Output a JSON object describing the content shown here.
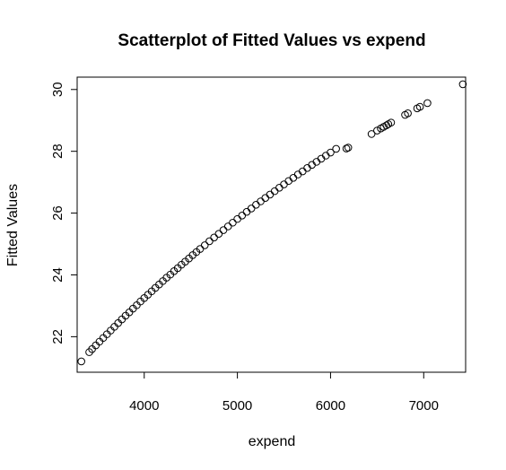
{
  "chart_data": {
    "type": "scatter",
    "title": "Scatterplot of Fitted Values vs expend",
    "xlabel": "expend",
    "ylabel": "Fitted Values",
    "xlim": [
      3280,
      7450
    ],
    "ylim": [
      20.85,
      30.4
    ],
    "xticks": [
      4000,
      5000,
      6000,
      7000
    ],
    "yticks": [
      22,
      24,
      26,
      28,
      30
    ],
    "grid": false,
    "legend": "none",
    "marker": "open-circle",
    "x": [
      3325,
      3410,
      3440,
      3480,
      3520,
      3560,
      3600,
      3640,
      3680,
      3720,
      3760,
      3800,
      3840,
      3880,
      3920,
      3960,
      4000,
      4040,
      4080,
      4120,
      4160,
      4200,
      4240,
      4280,
      4320,
      4360,
      4400,
      4440,
      4480,
      4520,
      4560,
      4600,
      4650,
      4700,
      4750,
      4800,
      4850,
      4900,
      4950,
      5000,
      5050,
      5100,
      5150,
      5200,
      5250,
      5300,
      5350,
      5400,
      5450,
      5500,
      5550,
      5600,
      5650,
      5700,
      5750,
      5800,
      5850,
      5900,
      5950,
      6000,
      6060,
      6170,
      6190,
      6440,
      6500,
      6540,
      6570,
      6600,
      6620,
      6650,
      6800,
      6830,
      6930,
      6960,
      7040,
      7420
    ],
    "y": [
      21.2,
      21.5,
      21.6,
      21.72,
      21.84,
      21.96,
      22.08,
      22.2,
      22.32,
      22.44,
      22.56,
      22.68,
      22.79,
      22.91,
      23.02,
      23.14,
      23.25,
      23.36,
      23.47,
      23.58,
      23.69,
      23.8,
      23.91,
      24.01,
      24.12,
      24.22,
      24.33,
      24.43,
      24.53,
      24.64,
      24.74,
      24.84,
      24.96,
      25.09,
      25.21,
      25.33,
      25.45,
      25.57,
      25.69,
      25.81,
      25.92,
      26.04,
      26.15,
      26.27,
      26.38,
      26.49,
      26.6,
      26.71,
      26.82,
      26.93,
      27.04,
      27.14,
      27.25,
      27.35,
      27.46,
      27.56,
      27.66,
      27.76,
      27.86,
      27.96,
      28.08,
      28.09,
      28.12,
      28.56,
      28.67,
      28.74,
      28.79,
      28.84,
      28.88,
      28.93,
      29.18,
      29.23,
      29.39,
      29.44,
      29.56,
      30.17
    ]
  }
}
